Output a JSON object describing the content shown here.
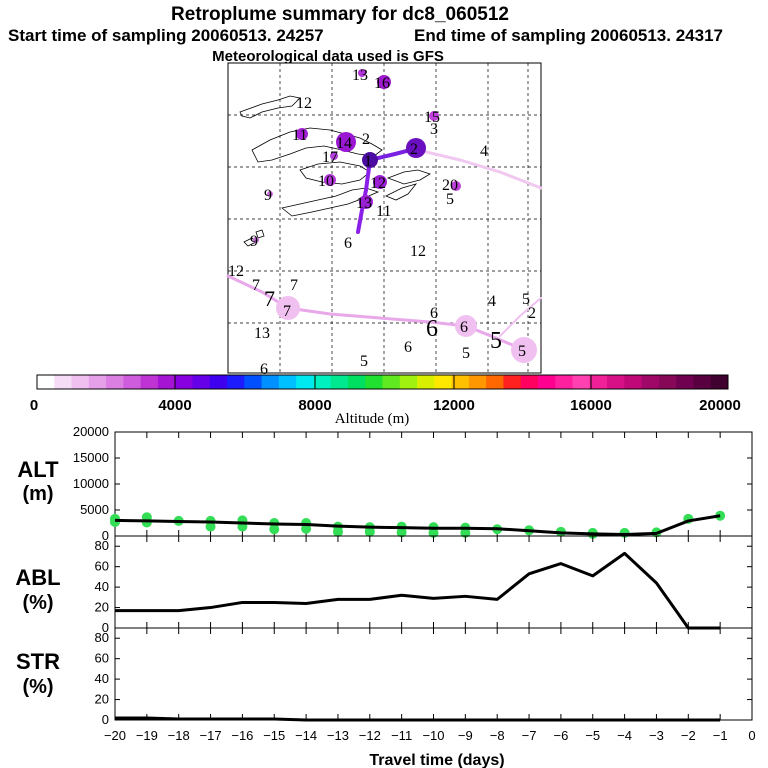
{
  "header": {
    "title": "Retroplume summary for dc8_060512",
    "start_label": "Start time of sampling 20060513. 24257",
    "end_label": "End time of sampling 20060513. 24317",
    "met_label": "Meteorological data used is GFS"
  },
  "map": {
    "day_labels": [
      {
        "text": "13",
        "color": "#000000"
      },
      {
        "text": "16",
        "color": "#000000"
      },
      {
        "text": "12",
        "color": "#000000"
      },
      {
        "text": "15",
        "color": "#000000"
      },
      {
        "text": "3",
        "color": "#000000"
      },
      {
        "text": "11",
        "color": "#000000"
      },
      {
        "text": "14",
        "color": "#000000"
      },
      {
        "text": "2",
        "color": "#000000"
      },
      {
        "text": "1",
        "color": "#000000"
      },
      {
        "text": "17",
        "color": "#000000"
      },
      {
        "text": "2",
        "color": "#000000"
      },
      {
        "text": "4",
        "color": "#000000"
      },
      {
        "text": "10",
        "color": "#000000"
      },
      {
        "text": "12",
        "color": "#000000"
      },
      {
        "text": "20",
        "color": "#000000"
      },
      {
        "text": "5",
        "color": "#000000"
      },
      {
        "text": "9",
        "color": "#000000"
      },
      {
        "text": "13",
        "color": "#000000"
      },
      {
        "text": "11",
        "color": "#000000"
      },
      {
        "text": "9",
        "color": "#000000"
      },
      {
        "text": "6",
        "color": "#000000"
      },
      {
        "text": "12",
        "color": "#000000"
      },
      {
        "text": "12",
        "color": "#000000"
      },
      {
        "text": "7",
        "color": "#000000"
      },
      {
        "text": "7",
        "color": "#000000"
      },
      {
        "text": "7",
        "color": "#000000"
      },
      {
        "text": "7",
        "color": "#000000"
      },
      {
        "text": "4",
        "color": "#000000"
      },
      {
        "text": "5",
        "color": "#000000"
      },
      {
        "text": "2",
        "color": "#000000"
      },
      {
        "text": "6",
        "color": "#000000"
      },
      {
        "text": "6",
        "color": "#000000"
      },
      {
        "text": "6",
        "color": "#000000"
      },
      {
        "text": "13",
        "color": "#000000"
      },
      {
        "text": "5",
        "color": "#000000"
      },
      {
        "text": "5",
        "color": "#000000"
      },
      {
        "text": "6",
        "color": "#000000"
      },
      {
        "text": "5",
        "color": "#000000"
      },
      {
        "text": "5",
        "color": "#000000"
      },
      {
        "text": "6",
        "color": "#000000"
      }
    ]
  },
  "colorbar": {
    "tick_labels": [
      "0",
      "4000",
      "8000",
      "12000",
      "16000",
      "20000"
    ],
    "axis_label": "Altitude (m)",
    "colors": [
      "#ffffff",
      "#f6dcf7",
      "#efc0f0",
      "#e6a0ea",
      "#dc7fe3",
      "#cf5cdc",
      "#bf33d4",
      "#a514d2",
      "#8800e0",
      "#6500e8",
      "#4000f0",
      "#1c1cff",
      "#0050ff",
      "#0090ff",
      "#00c0ff",
      "#00e8f0",
      "#00f0c0",
      "#00e890",
      "#00e060",
      "#20e030",
      "#60e820",
      "#a0f010",
      "#d8f000",
      "#ffe800",
      "#ffc000",
      "#ff9800",
      "#ff6800",
      "#ff2020",
      "#ff0060",
      "#ff0090",
      "#ff20a0",
      "#ff40b0",
      "#f02098",
      "#d81088",
      "#c00878",
      "#a00868",
      "#880858",
      "#700050",
      "#580040",
      "#400030"
    ]
  },
  "chart_data": [
    {
      "type": "line",
      "panel": "ALT",
      "ylabel": "ALT\n(m)",
      "ylabel_lines": [
        "ALT",
        "(m)"
      ],
      "ylim": [
        0,
        20000
      ],
      "yticks": [
        0,
        5000,
        10000,
        15000,
        20000
      ],
      "ytick_labels": [
        "0",
        "5000",
        "10000",
        "15000",
        "20000"
      ],
      "xlim": [
        -20,
        0
      ],
      "x": [
        -20,
        -19,
        -18,
        -17,
        -16,
        -15,
        -14,
        -13,
        -12,
        -11,
        -10,
        -9,
        -8,
        -7,
        -6,
        -5,
        -4,
        -3,
        -2,
        -1
      ],
      "values": [
        3000,
        2900,
        2800,
        2700,
        2500,
        2300,
        2200,
        1900,
        1700,
        1600,
        1500,
        1500,
        1400,
        1000,
        600,
        400,
        300,
        500,
        2900,
        3900
      ],
      "markers": [
        {
          "x": -20,
          "y": 3300
        },
        {
          "x": -20,
          "y": 2700
        },
        {
          "x": -19,
          "y": 3600
        },
        {
          "x": -19,
          "y": 2600
        },
        {
          "x": -18,
          "y": 2900
        },
        {
          "x": -17,
          "y": 2900
        },
        {
          "x": -17,
          "y": 1800
        },
        {
          "x": -16,
          "y": 3000
        },
        {
          "x": -16,
          "y": 1800
        },
        {
          "x": -15,
          "y": 2500
        },
        {
          "x": -15,
          "y": 1300
        },
        {
          "x": -14,
          "y": 2500
        },
        {
          "x": -14,
          "y": 1400
        },
        {
          "x": -13,
          "y": 1800
        },
        {
          "x": -13,
          "y": 800
        },
        {
          "x": -12,
          "y": 1700
        },
        {
          "x": -12,
          "y": 800
        },
        {
          "x": -11,
          "y": 1800
        },
        {
          "x": -11,
          "y": 700
        },
        {
          "x": -10,
          "y": 1700
        },
        {
          "x": -10,
          "y": 600
        },
        {
          "x": -9,
          "y": 1600
        },
        {
          "x": -9,
          "y": 600
        },
        {
          "x": -8,
          "y": 1300
        },
        {
          "x": -7,
          "y": 1100
        },
        {
          "x": -6,
          "y": 800
        },
        {
          "x": -5,
          "y": 600
        },
        {
          "x": -5,
          "y": 400
        },
        {
          "x": -4,
          "y": 600
        },
        {
          "x": -3,
          "y": 700
        },
        {
          "x": -2,
          "y": 3300
        },
        {
          "x": -1,
          "y": 3900
        }
      ]
    },
    {
      "type": "line",
      "panel": "ABL",
      "ylabel_lines": [
        "ABL",
        "(%)"
      ],
      "ylim": [
        0,
        90
      ],
      "yticks": [
        0,
        20,
        40,
        60,
        80
      ],
      "ytick_labels": [
        "0",
        "20",
        "40",
        "60",
        "80"
      ],
      "xlim": [
        -20,
        0
      ],
      "x": [
        -20,
        -19,
        -18,
        -17,
        -16,
        -15,
        -14,
        -13,
        -12,
        -11,
        -10,
        -9,
        -8,
        -7,
        -6,
        -5,
        -4,
        -3,
        -2,
        -1
      ],
      "values": [
        17,
        17,
        17,
        20,
        25,
        25,
        24,
        28,
        28,
        32,
        29,
        31,
        28,
        53,
        63,
        51,
        73,
        44,
        0,
        0
      ]
    },
    {
      "type": "line",
      "panel": "STR",
      "ylabel_lines": [
        "STR",
        "(%)"
      ],
      "ylim": [
        0,
        90
      ],
      "yticks": [
        0,
        20,
        40,
        60,
        80
      ],
      "ytick_labels": [
        "0",
        "20",
        "40",
        "60",
        "80"
      ],
      "xlim": [
        -20,
        0
      ],
      "x": [
        -20,
        -19,
        -18,
        -17,
        -16,
        -15,
        -14,
        -13,
        -12,
        -11,
        -10,
        -9,
        -8,
        -7,
        -6,
        -5,
        -4,
        -3,
        -2,
        -1
      ],
      "values": [
        2,
        2,
        1,
        1,
        1,
        1,
        0,
        0,
        0,
        0,
        0,
        0,
        0,
        0,
        0,
        0,
        0,
        0,
        0,
        0
      ],
      "xticks": [
        -20,
        -19,
        -18,
        -17,
        -16,
        -15,
        -14,
        -13,
        -12,
        -11,
        -10,
        -9,
        -8,
        -7,
        -6,
        -5,
        -4,
        -3,
        -2,
        -1,
        0
      ],
      "xtick_labels": [
        "−20",
        "−19",
        "−18",
        "−17",
        "−16",
        "−15",
        "−14",
        "−13",
        "−12",
        "−11",
        "−10",
        "−9",
        "−8",
        "−7",
        "−6",
        "−5",
        "−4",
        "−3",
        "−2",
        "−1",
        "0"
      ],
      "xlabel": "Travel time (days)"
    }
  ]
}
